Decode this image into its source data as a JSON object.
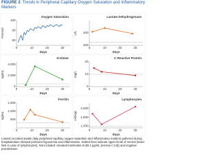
{
  "figure": {
    "label": "FIGURE 2",
    "title": "Trends in Peripheral Capillary Oxygen Saturation and Inflammatory Markers"
  },
  "chart_data": [
    {
      "type": "line",
      "title": "Oxygen Saturation",
      "y_label": "Percent",
      "x_label": "Days",
      "color": "#2f6db5",
      "markers": false,
      "x": [
        1,
        2,
        3,
        4,
        5,
        6,
        7,
        8,
        9,
        10,
        11,
        12,
        13,
        14,
        15,
        16,
        17,
        18,
        19,
        20,
        21,
        22,
        23,
        24,
        25,
        26,
        27,
        28,
        29,
        30
      ],
      "values": [
        78,
        82,
        85,
        80,
        88,
        86,
        90,
        89,
        92,
        91,
        90,
        93,
        92,
        94,
        93,
        92,
        95,
        94,
        93,
        95,
        94,
        96,
        95,
        94,
        95,
        96,
        95,
        94,
        96,
        95
      ],
      "xlim": [
        0,
        35
      ],
      "xticks": [
        0,
        10,
        20,
        30
      ],
      "ylim": [
        75,
        100
      ],
      "yticks": [
        80,
        90,
        100
      ]
    },
    {
      "type": "line",
      "title": "Lactate Dehydrogenase",
      "y_label": "U/L",
      "x_label": "Days",
      "color": "#e8772e",
      "markers": true,
      "x": [
        2,
        10,
        28
      ],
      "values": [
        420,
        480,
        390
      ],
      "reference_line": 250,
      "xlim": [
        0,
        35
      ],
      "xticks": [
        0,
        10,
        20,
        30
      ],
      "ylim": [
        200,
        600
      ],
      "yticks": [
        200,
        400
      ]
    },
    {
      "type": "line",
      "title": "D-Dimer",
      "y_label": "ng/mL",
      "x_label": "Days",
      "color": "#3aa935",
      "markers": true,
      "x": [
        6,
        12,
        30
      ],
      "values": [
        300,
        3700,
        1300
      ],
      "reference_line": 500,
      "xlim": [
        0,
        35
      ],
      "xticks": [
        0,
        10,
        20,
        30
      ],
      "ylim": [
        0,
        4500
      ],
      "yticks": [
        0,
        {
          "value": 2000,
          "label": "2,000"
        },
        {
          "value": 4000,
          "label": "4,000"
        }
      ]
    },
    {
      "type": "line",
      "title": "C-Reactive Protein",
      "y_label": "mg/L",
      "x_label": "Days",
      "color": "#c0392b",
      "markers": true,
      "x": [
        3,
        8,
        30
      ],
      "values": [
        15,
        12,
        9
      ],
      "reference_line": 10,
      "xlim": [
        0,
        35
      ],
      "xticks": [
        0,
        10,
        20,
        30
      ],
      "ylim": [
        0,
        20
      ],
      "yticks": [
        0,
        10,
        20
      ]
    },
    {
      "type": "line",
      "title": "Ferritin",
      "y_label": "ng/mL",
      "x_label": "Days",
      "color": "#e8772e",
      "markers": true,
      "x": [
        5,
        9,
        12,
        30
      ],
      "values": [
        500,
        1100,
        800,
        350
      ],
      "reference_line": 300,
      "xlim": [
        0,
        35
      ],
      "xticks": [
        0,
        10,
        20,
        30
      ],
      "ylim": [
        0,
        1500
      ],
      "yticks": [
        500,
        {
          "value": 1000,
          "label": "1,000"
        },
        {
          "value": 1500,
          "label": "1,500"
        }
      ]
    },
    {
      "type": "line",
      "title": "Lymphocytes",
      "y_label": "cells/µL",
      "x_label": "Days",
      "color": "#d6455c",
      "markers": true,
      "x": [
        2,
        8,
        30
      ],
      "values": [
        1700,
        1100,
        2100
      ],
      "reference_line": 1000,
      "xlim": [
        0,
        35
      ],
      "xticks": [
        0,
        10,
        20,
        30
      ],
      "ylim": [
        900,
        2300
      ],
      "yticks": [
        {
          "value": 1000,
          "label": "1,000"
        },
        {
          "value": 1500,
          "label": "1,500"
        },
        {
          "value": 2000,
          "label": "2,000"
        }
      ]
    }
  ],
  "caption": "Lowest recorded awake daily peripheral capillary oxygen saturation and inflammatory markers gathered during hospitalization showed profound hypoxemia and inflammation. Dotted lines indicate upper limits of normal (lower limit in case of lymphocytes). Not included: elevated interleukin-6 (69.1 pg/mL [normal < 5.0]) and negative procalcitonin."
}
